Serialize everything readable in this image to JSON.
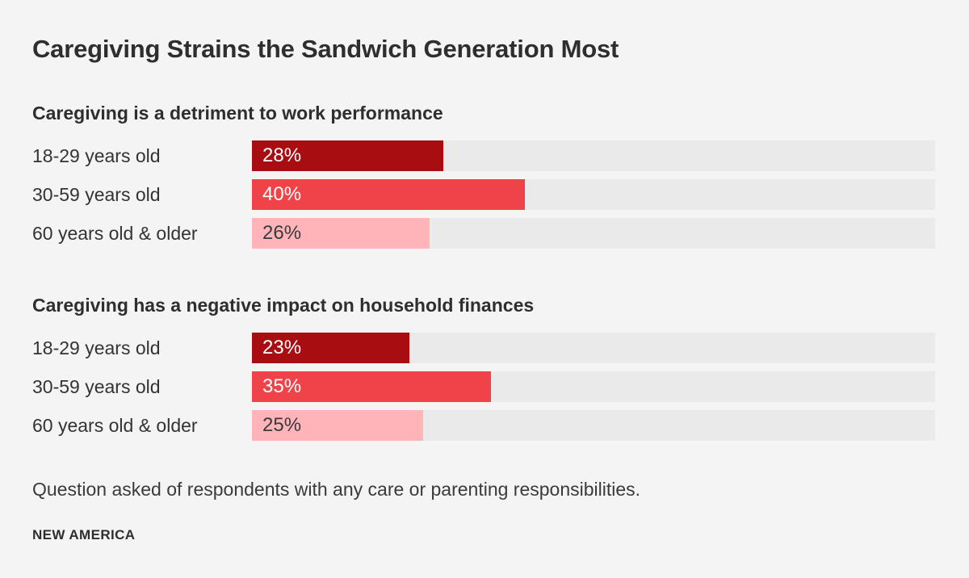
{
  "page": {
    "background": "#f4f4f4",
    "title": "Caregiving Strains the Sandwich Generation Most",
    "footnote": "Question asked of respondents with any care or parenting responsibilities.",
    "source": "NEW AMERICA"
  },
  "colors": {
    "bar_dark_red": "#a80d12",
    "bar_bright_red": "#f04349",
    "bar_pink": "#ffb4ba",
    "track_gray": "#eaeaea",
    "heading_text": "#2e2e2e",
    "body_text": "#3a3a3a",
    "value_on_dark": "#ffffff",
    "value_on_pink": "#3a3a3a"
  },
  "chart_data": [
    {
      "type": "bar",
      "orientation": "horizontal",
      "title": "Caregiving is a detriment to work performance",
      "categories": [
        "18-29 years old",
        "30-59 years old",
        "60 years old & older"
      ],
      "values": [
        28,
        40,
        26
      ],
      "value_labels": [
        "28%",
        "40%",
        "26%"
      ],
      "bar_colors": [
        "#a80d12",
        "#f04349",
        "#ffb4ba"
      ],
      "value_label_colors": [
        "#ffffff",
        "#ffffff",
        "#3a3a3a"
      ],
      "xlim": [
        0,
        100
      ],
      "track_color": "#eaeaea",
      "grid": false,
      "legend": false
    },
    {
      "type": "bar",
      "orientation": "horizontal",
      "title": "Caregiving has a negative impact on household finances",
      "categories": [
        "18-29 years old",
        "30-59 years old",
        "60 years old & older"
      ],
      "values": [
        23,
        35,
        25
      ],
      "value_labels": [
        "23%",
        "35%",
        "25%"
      ],
      "bar_colors": [
        "#a80d12",
        "#f04349",
        "#ffb4ba"
      ],
      "value_label_colors": [
        "#ffffff",
        "#ffffff",
        "#3a3a3a"
      ],
      "xlim": [
        0,
        100
      ],
      "track_color": "#eaeaea",
      "grid": false,
      "legend": false
    }
  ]
}
